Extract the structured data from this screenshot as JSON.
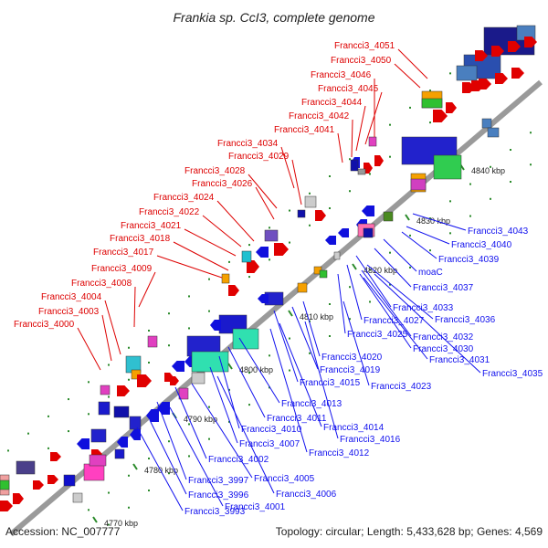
{
  "title": "Frankia sp. CcI3, complete genome",
  "footer": {
    "accession": "Accession: NC_007777",
    "topology": "Topology: circular; Length: 5,433,628 bp; Genes: 4,569"
  },
  "axis": {
    "ticks": [
      "4770 kbp",
      "4780 kbp",
      "4790 kbp",
      "4800 kbp",
      "4810 kbp",
      "4820 kbp",
      "4830 kbp",
      "4840 kbp"
    ]
  },
  "colors": {
    "upper_label": "#dd0000",
    "lower_label": "#1010ee",
    "backbone": "#999999",
    "tick": "#2a8a2a"
  },
  "upper_labels": [
    "Francci3_4051",
    "Francci3_4050",
    "Francci3_4046",
    "Francci3_4045",
    "Francci3_4044",
    "Francci3_4042",
    "Francci3_4041",
    "Francci3_4034",
    "Francci3_4029",
    "Francci3_4028",
    "Francci3_4026",
    "Francci3_4024",
    "Francci3_4022",
    "Francci3_4021",
    "Francci3_4018",
    "Francci3_4017",
    "Francci3_4009",
    "Francci3_4008",
    "Francci3_4004",
    "Francci3_4003",
    "Francci3_4000"
  ],
  "lower_labels": [
    "Francci3_4043",
    "Francci3_4040",
    "Francci3_4039",
    "moaC",
    "Francci3_4037",
    "Francci3_4033",
    "Francci3_4036",
    "Francci3_4027",
    "Francci3_4032",
    "Francci3_4025",
    "Francci3_4030",
    "Francci3_4031",
    "Francci3_4035",
    "Francci3_4020",
    "Francci3_4019",
    "Francci3_4015",
    "Francci3_4023",
    "Francci3_4013",
    "Francci3_4011",
    "Francci3_4010",
    "Francci3_4014",
    "Francci3_4007",
    "Francci3_4016",
    "Francci3_4002",
    "Francci3_4012",
    "Francci3_3997",
    "Francci3_4005",
    "Francci3_3996",
    "Francci3_4006",
    "Francci3_4001",
    "Francci3_3993"
  ]
}
